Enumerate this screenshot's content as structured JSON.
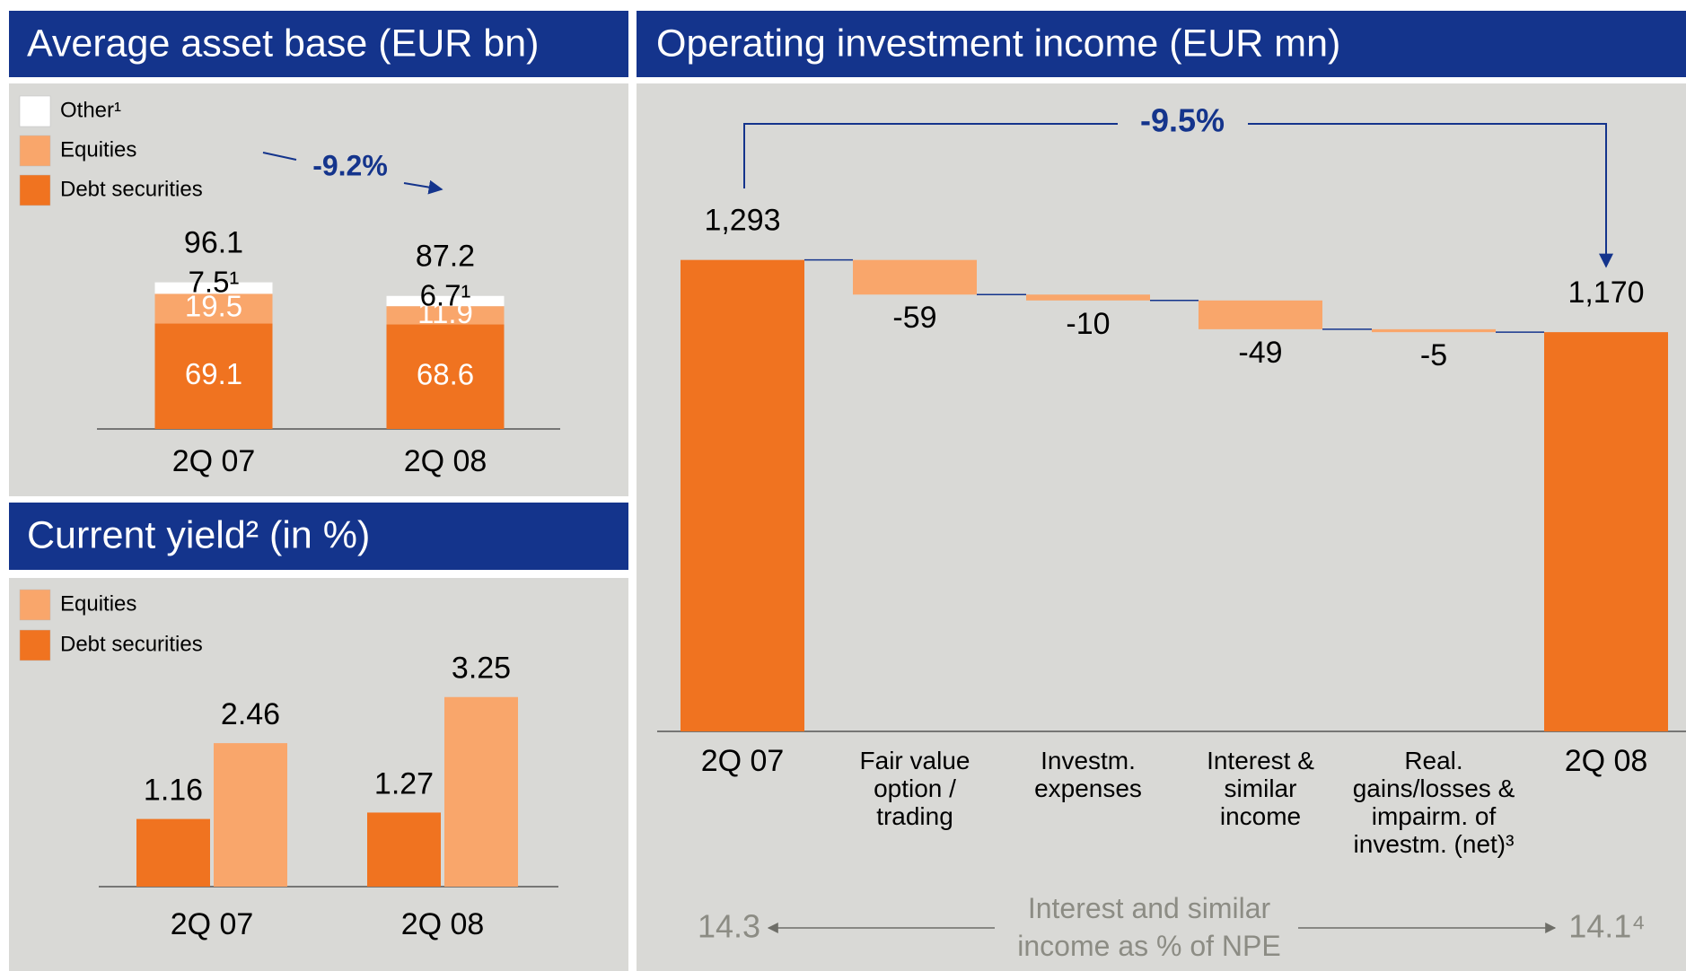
{
  "chart_data": [
    {
      "type": "stacked_bar",
      "title": "Average asset base (EUR bn)",
      "categories": [
        "2Q 07",
        "2Q 08"
      ],
      "series": [
        {
          "name": "Debt securities",
          "color": "#f07320",
          "values": [
            69.1,
            68.6
          ]
        },
        {
          "name": "Equities",
          "color": "#f9a66b",
          "values": [
            19.5,
            11.9
          ]
        },
        {
          "name": "Other¹",
          "color": "#ffffff",
          "values": [
            7.5,
            6.7
          ],
          "value_labels": [
            "7.5¹",
            "6.7¹"
          ]
        }
      ],
      "totals": [
        96.1,
        87.2
      ],
      "annotation": "-9.2%"
    },
    {
      "type": "grouped_bar",
      "title": "Current yield² (in %)",
      "categories": [
        "2Q 07",
        "2Q 08"
      ],
      "series": [
        {
          "name": "Debt securities",
          "color": "#f07320",
          "values": [
            1.16,
            1.27
          ]
        },
        {
          "name": "Equities",
          "color": "#f9a66b",
          "values": [
            2.46,
            3.25
          ]
        }
      ]
    },
    {
      "type": "waterfall",
      "title": "Operating investment income (EUR mn)",
      "categories": [
        "2Q 07",
        "Fair value option / trading",
        "Investm. expenses",
        "Interest & similar income",
        "Real. gains/losses & impairm. of investm. (net)³",
        "2Q 08"
      ],
      "values": [
        1293,
        -59,
        -10,
        -49,
        -5,
        1170
      ],
      "value_labels": [
        "1,293",
        "-59",
        "-10",
        "-49",
        "-5",
        "1,170"
      ],
      "measure": [
        "total",
        "relative",
        "relative",
        "relative",
        "relative",
        "total"
      ],
      "colors": {
        "total": "#f07320",
        "relative": "#f9a66b"
      },
      "ylim": [
        490,
        1320
      ],
      "annotation": "-9.5%",
      "npe": {
        "label": "Interest and similar income as % of NPE",
        "values": [
          14.3,
          14.1
        ],
        "value_labels": [
          "14.3",
          "14.1⁴"
        ]
      }
    }
  ]
}
